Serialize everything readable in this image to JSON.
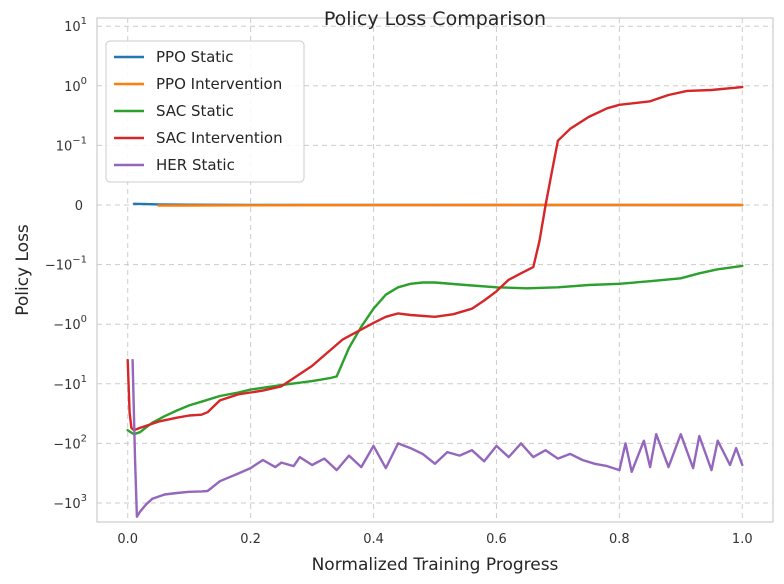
{
  "chart_data": {
    "type": "line",
    "title": "Policy Loss Comparison",
    "xlabel": "Normalized Training Progress",
    "ylabel": "Policy Loss",
    "xlim": [
      -0.05,
      1.05
    ],
    "xticks": [
      0.0,
      0.2,
      0.4,
      0.6,
      0.8,
      1.0
    ],
    "xtick_labels": [
      "0.0",
      "0.2",
      "0.4",
      "0.6",
      "0.8",
      "1.0"
    ],
    "yscale": "symlog",
    "yticks": [
      10,
      1,
      0.1,
      0,
      -0.1,
      -1,
      -10,
      -100,
      -1000
    ],
    "ytick_labels": [
      {
        "base": "10",
        "exp": "1"
      },
      {
        "base": "10",
        "exp": "0"
      },
      {
        "base": "10",
        "exp": "−1"
      },
      {
        "base": "0",
        "exp": ""
      },
      {
        "base": "−10",
        "exp": "−1"
      },
      {
        "base": "−10",
        "exp": "0"
      },
      {
        "base": "−10",
        "exp": "1"
      },
      {
        "base": "−10",
        "exp": "2"
      },
      {
        "base": "−10",
        "exp": "3"
      }
    ],
    "grid": true,
    "legend_position": "top-left",
    "series": [
      {
        "name": "PPO Static",
        "color": "#1f77b4",
        "points": [
          [
            0.01,
            0.002
          ],
          [
            0.03,
            0.0015
          ],
          [
            0.05,
            0.001
          ],
          [
            0.1,
            0.0005
          ],
          [
            0.2,
            0.0002
          ],
          [
            0.4,
            0.0
          ],
          [
            0.6,
            0.0
          ],
          [
            0.8,
            0.0
          ],
          [
            1.0,
            0.0
          ]
        ]
      },
      {
        "name": "PPO Intervention",
        "color": "#ff7f0e",
        "points": [
          [
            0.05,
            -0.001
          ],
          [
            0.1,
            -0.0008
          ],
          [
            0.2,
            -0.0005
          ],
          [
            0.3,
            -0.0003
          ],
          [
            0.4,
            -0.0002
          ],
          [
            0.5,
            -0.0001
          ],
          [
            0.6,
            0.0
          ],
          [
            0.7,
            0.0001
          ],
          [
            0.8,
            0.0001
          ],
          [
            0.9,
            0.0
          ],
          [
            1.0,
            0.0
          ]
        ]
      },
      {
        "name": "SAC Static",
        "color": "#2ca02c",
        "points": [
          [
            0.0,
            -60
          ],
          [
            0.01,
            -70
          ],
          [
            0.02,
            -65
          ],
          [
            0.04,
            -45
          ],
          [
            0.06,
            -35
          ],
          [
            0.08,
            -28
          ],
          [
            0.1,
            -23
          ],
          [
            0.12,
            -20
          ],
          [
            0.15,
            -16
          ],
          [
            0.18,
            -14
          ],
          [
            0.2,
            -12.5
          ],
          [
            0.25,
            -10.5
          ],
          [
            0.3,
            -9
          ],
          [
            0.33,
            -8
          ],
          [
            0.34,
            -7.5
          ],
          [
            0.36,
            -2.5
          ],
          [
            0.38,
            -1.1
          ],
          [
            0.4,
            -0.55
          ],
          [
            0.42,
            -0.32
          ],
          [
            0.44,
            -0.24
          ],
          [
            0.46,
            -0.21
          ],
          [
            0.48,
            -0.2
          ],
          [
            0.5,
            -0.2
          ],
          [
            0.55,
            -0.22
          ],
          [
            0.6,
            -0.24
          ],
          [
            0.65,
            -0.25
          ],
          [
            0.7,
            -0.24
          ],
          [
            0.75,
            -0.22
          ],
          [
            0.8,
            -0.21
          ],
          [
            0.85,
            -0.19
          ],
          [
            0.9,
            -0.17
          ],
          [
            0.93,
            -0.14
          ],
          [
            0.96,
            -0.12
          ],
          [
            1.0,
            -0.105
          ]
        ]
      },
      {
        "name": "SAC Intervention",
        "color": "#d62728",
        "points": [
          [
            0.0,
            -4
          ],
          [
            0.003,
            -30
          ],
          [
            0.006,
            -55
          ],
          [
            0.01,
            -60
          ],
          [
            0.02,
            -55
          ],
          [
            0.05,
            -43
          ],
          [
            0.08,
            -37
          ],
          [
            0.1,
            -34
          ],
          [
            0.12,
            -33
          ],
          [
            0.13,
            -30
          ],
          [
            0.15,
            -19
          ],
          [
            0.18,
            -15
          ],
          [
            0.2,
            -14
          ],
          [
            0.22,
            -13
          ],
          [
            0.25,
            -11
          ],
          [
            0.3,
            -5
          ],
          [
            0.35,
            -1.8
          ],
          [
            0.4,
            -0.95
          ],
          [
            0.42,
            -0.75
          ],
          [
            0.44,
            -0.66
          ],
          [
            0.46,
            -0.7
          ],
          [
            0.5,
            -0.75
          ],
          [
            0.53,
            -0.68
          ],
          [
            0.56,
            -0.55
          ],
          [
            0.58,
            -0.4
          ],
          [
            0.6,
            -0.28
          ],
          [
            0.62,
            -0.18
          ],
          [
            0.64,
            -0.14
          ],
          [
            0.66,
            -0.11
          ],
          [
            0.67,
            -0.06
          ],
          [
            0.68,
            0.0
          ],
          [
            0.69,
            0.055
          ],
          [
            0.7,
            0.12
          ],
          [
            0.72,
            0.19
          ],
          [
            0.75,
            0.3
          ],
          [
            0.78,
            0.42
          ],
          [
            0.8,
            0.48
          ],
          [
            0.85,
            0.55
          ],
          [
            0.88,
            0.7
          ],
          [
            0.91,
            0.82
          ],
          [
            0.95,
            0.85
          ],
          [
            1.0,
            0.95
          ]
        ]
      },
      {
        "name": "HER Static",
        "color": "#9467bd",
        "points": [
          [
            0.008,
            -4
          ],
          [
            0.012,
            -200
          ],
          [
            0.015,
            -1700
          ],
          [
            0.02,
            -1400
          ],
          [
            0.03,
            -1050
          ],
          [
            0.04,
            -850
          ],
          [
            0.06,
            -720
          ],
          [
            0.08,
            -680
          ],
          [
            0.1,
            -650
          ],
          [
            0.12,
            -640
          ],
          [
            0.13,
            -630
          ],
          [
            0.15,
            -430
          ],
          [
            0.18,
            -320
          ],
          [
            0.2,
            -260
          ],
          [
            0.22,
            -190
          ],
          [
            0.24,
            -250
          ],
          [
            0.25,
            -210
          ],
          [
            0.27,
            -240
          ],
          [
            0.28,
            -170
          ],
          [
            0.3,
            -230
          ],
          [
            0.32,
            -180
          ],
          [
            0.34,
            -280
          ],
          [
            0.36,
            -160
          ],
          [
            0.38,
            -250
          ],
          [
            0.4,
            -110
          ],
          [
            0.42,
            -260
          ],
          [
            0.44,
            -100
          ],
          [
            0.46,
            -120
          ],
          [
            0.48,
            -150
          ],
          [
            0.5,
            -220
          ],
          [
            0.52,
            -140
          ],
          [
            0.54,
            -160
          ],
          [
            0.56,
            -130
          ],
          [
            0.58,
            -200
          ],
          [
            0.6,
            -110
          ],
          [
            0.62,
            -170
          ],
          [
            0.64,
            -100
          ],
          [
            0.66,
            -170
          ],
          [
            0.68,
            -130
          ],
          [
            0.7,
            -180
          ],
          [
            0.72,
            -150
          ],
          [
            0.74,
            -190
          ],
          [
            0.76,
            -220
          ],
          [
            0.78,
            -240
          ],
          [
            0.8,
            -280
          ],
          [
            0.81,
            -100
          ],
          [
            0.82,
            -300
          ],
          [
            0.84,
            -90
          ],
          [
            0.85,
            -250
          ],
          [
            0.86,
            -70
          ],
          [
            0.88,
            -250
          ],
          [
            0.9,
            -70
          ],
          [
            0.92,
            -260
          ],
          [
            0.93,
            -75
          ],
          [
            0.95,
            -280
          ],
          [
            0.96,
            -90
          ],
          [
            0.98,
            -230
          ],
          [
            0.99,
            -120
          ],
          [
            1.0,
            -230
          ]
        ]
      }
    ]
  }
}
